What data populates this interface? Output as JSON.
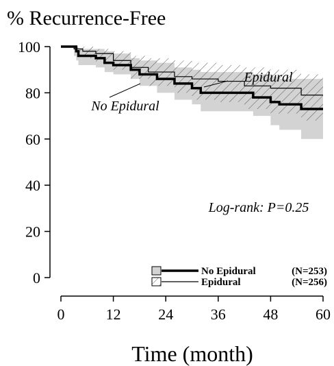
{
  "chart_data": {
    "type": "survival",
    "title": "% Recurrence-Free",
    "x_label": "Time (month)",
    "xlim": [
      0,
      60
    ],
    "xticks": [
      0,
      12,
      24,
      36,
      48,
      60
    ],
    "ylim": [
      0,
      100
    ],
    "yticks": [
      0,
      20,
      40,
      60,
      80,
      100
    ],
    "series": [
      {
        "name": "No Epidural",
        "n_label": "(N=253)",
        "color": "#000000",
        "band": "solid",
        "band_color": "#d3d3d3",
        "x": [
          0,
          3,
          3.5,
          4,
          8,
          10,
          12,
          16,
          18,
          22,
          26,
          30,
          32,
          44,
          48,
          50,
          55,
          60
        ],
        "values": [
          100,
          100,
          98,
          96,
          95,
          93,
          92,
          90,
          88,
          86,
          84,
          82,
          80,
          78,
          76,
          75,
          73,
          73
        ],
        "lower": [
          100,
          96,
          94,
          92,
          91,
          89,
          88,
          86,
          83,
          80,
          77,
          75,
          72,
          70,
          66,
          64,
          60,
          58
        ],
        "upper": [
          100,
          100,
          100,
          99,
          99,
          98,
          97,
          95,
          94,
          93,
          91,
          90,
          89,
          88,
          87,
          86,
          86,
          86
        ]
      },
      {
        "name": "Epidural",
        "n_label": "(N=256)",
        "color": "#000000",
        "band": "hatch",
        "band_color": "#555555",
        "x": [
          0,
          3,
          5,
          8,
          12,
          16,
          20,
          26,
          30,
          36,
          42,
          48,
          55,
          60
        ],
        "values": [
          100,
          99,
          98,
          97,
          94,
          91,
          89,
          87,
          86,
          85,
          83,
          82,
          79,
          79
        ],
        "lower": [
          100,
          97,
          95,
          93,
          90,
          86,
          83,
          80,
          77,
          76,
          73,
          71,
          68,
          67
        ],
        "upper": [
          100,
          100,
          100,
          99,
          98,
          96,
          95,
          94,
          93,
          92,
          91,
          90,
          88,
          88
        ]
      }
    ],
    "annotations": [
      {
        "text": "Epidural"
      },
      {
        "text": "No Epidural"
      },
      {
        "text": "Log-rank: P=0.25"
      }
    ]
  }
}
